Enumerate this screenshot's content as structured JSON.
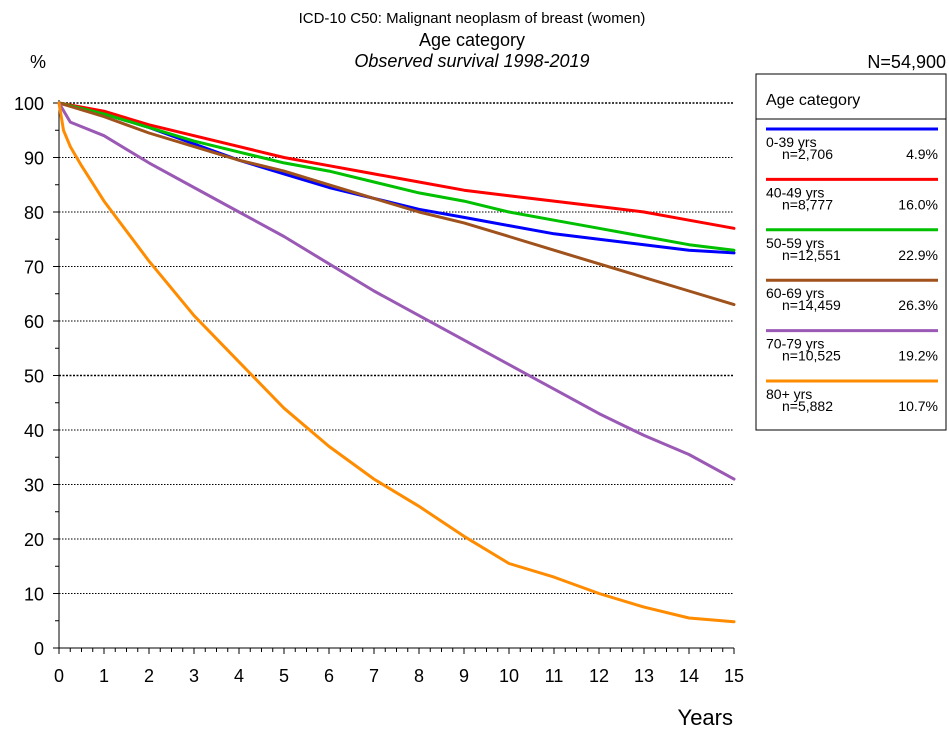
{
  "chart_data": {
    "type": "line",
    "title": "ICD-10 C50: Malignant neoplasm of breast (women)",
    "subtitle": "Age category",
    "subtitle2": "Observed survival 1998-2019",
    "total": "N=54,900",
    "ylabel": "%",
    "xlabel": "Years",
    "xlim": [
      0,
      15
    ],
    "ylim": [
      0,
      100
    ],
    "xticks": [
      "0",
      "1",
      "2",
      "3",
      "4",
      "5",
      "6",
      "7",
      "8",
      "9",
      "10",
      "11",
      "12",
      "13",
      "14",
      "15"
    ],
    "yticks": [
      "0",
      "10",
      "20",
      "30",
      "40",
      "50",
      "60",
      "70",
      "80",
      "90",
      "100"
    ],
    "grid": "horizontal dotted",
    "legend_title": "Age category",
    "legend_position": "right",
    "series": [
      {
        "name": "0-39 yrs",
        "n": "n=2,706",
        "pct": "4.9%",
        "color": "#0000ff",
        "x": [
          0,
          1,
          2,
          3,
          4,
          5,
          6,
          7,
          8,
          9,
          10,
          11,
          12,
          13,
          14,
          15
        ],
        "y": [
          100,
          98,
          95.5,
          92.5,
          89.5,
          87,
          84.5,
          82.5,
          80.5,
          79,
          77.5,
          76,
          75,
          74,
          73,
          72.5
        ]
      },
      {
        "name": "40-49 yrs",
        "n": "n=8,777",
        "pct": "16.0%",
        "color": "#ff0000",
        "x": [
          0,
          1,
          2,
          3,
          4,
          5,
          6,
          7,
          8,
          9,
          10,
          11,
          12,
          13,
          14,
          15
        ],
        "y": [
          100,
          98.5,
          96,
          94,
          92,
          90,
          88.5,
          87,
          85.5,
          84,
          83,
          82,
          81,
          80,
          78.5,
          77
        ]
      },
      {
        "name": "50-59 yrs",
        "n": "n=12,551",
        "pct": "22.9%",
        "color": "#00c000",
        "x": [
          0,
          1,
          2,
          3,
          4,
          5,
          6,
          7,
          8,
          9,
          10,
          11,
          12,
          13,
          14,
          15
        ],
        "y": [
          100,
          98,
          95.5,
          93,
          91,
          89,
          87.5,
          85.5,
          83.5,
          82,
          80,
          78.5,
          77,
          75.5,
          74,
          73
        ]
      },
      {
        "name": "60-69 yrs",
        "n": "n=14,459",
        "pct": "26.3%",
        "color": "#a0521c",
        "x": [
          0,
          1,
          2,
          3,
          4,
          5,
          6,
          7,
          8,
          9,
          10,
          11,
          12,
          13,
          14,
          15
        ],
        "y": [
          100,
          97.5,
          94.5,
          92,
          89.5,
          87.5,
          85,
          82.5,
          80,
          78,
          75.5,
          73,
          70.5,
          68,
          65.5,
          63
        ]
      },
      {
        "name": "70-79 yrs",
        "n": "n=10,525",
        "pct": "19.2%",
        "color": "#9b59b6",
        "x": [
          0,
          0.25,
          1,
          2,
          3,
          4,
          5,
          6,
          7,
          8,
          9,
          10,
          11,
          12,
          13,
          14,
          15
        ],
        "y": [
          100,
          96.5,
          94,
          89,
          84.5,
          80,
          75.5,
          70.5,
          65.5,
          61,
          56.5,
          52,
          47.5,
          43,
          39,
          35.5,
          31
        ]
      },
      {
        "name": "80+ yrs",
        "n": "n=5,882",
        "pct": "10.7%",
        "color": "#ff8c00",
        "x": [
          0,
          0.1,
          0.25,
          0.5,
          1,
          2,
          3,
          4,
          5,
          6,
          7,
          8,
          9,
          10,
          11,
          12,
          13,
          14,
          15
        ],
        "y": [
          100,
          95,
          92,
          88.5,
          82,
          71,
          61,
          52.5,
          44,
          37,
          31,
          26,
          20.5,
          15.5,
          13,
          10,
          7.5,
          5.5,
          4.8
        ]
      }
    ]
  }
}
